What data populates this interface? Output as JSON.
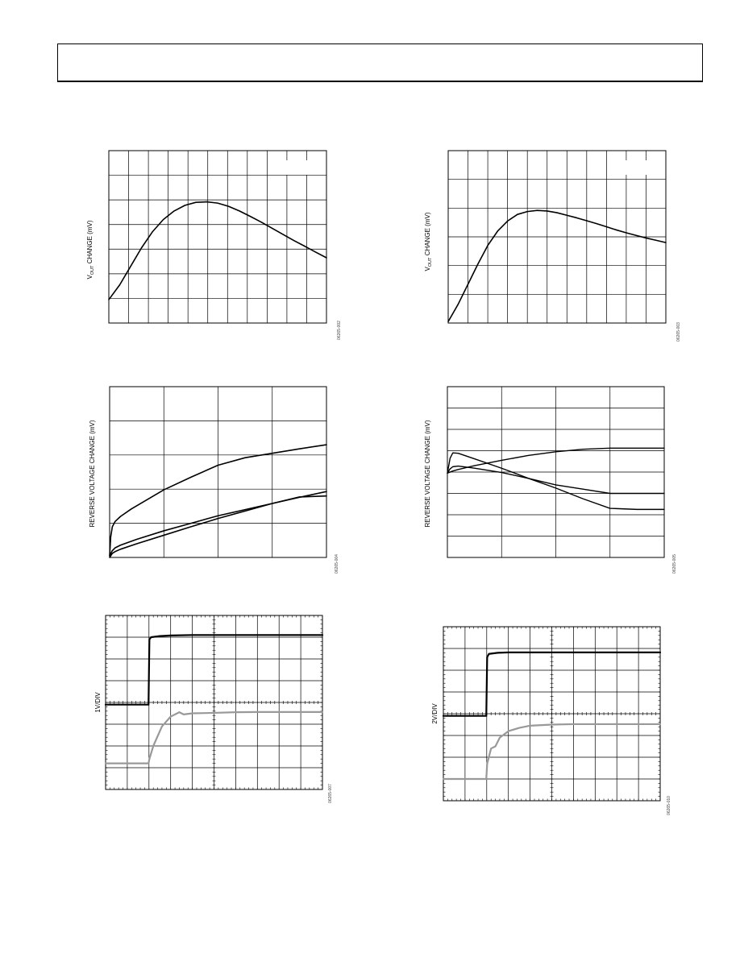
{
  "header": {
    "text": ""
  },
  "chart_data": [
    {
      "type": "line",
      "ylabel_main": "V",
      "ylabel_sub": "OUT",
      "ylabel_rest": " CHANGE (mV)",
      "grid": true,
      "xlim": [
        0,
        10
      ],
      "ylim": [
        0,
        7
      ],
      "series": [
        {
          "x": [
            0,
            0.5,
            1,
            1.5,
            2,
            2.5,
            3,
            3.5,
            4,
            4.5,
            5,
            5.5,
            6,
            6.5,
            7,
            7.5,
            8,
            8.5,
            9,
            9.5,
            10
          ],
          "y": [
            0.95,
            1.55,
            2.3,
            3.05,
            3.7,
            4.2,
            4.55,
            4.78,
            4.9,
            4.92,
            4.87,
            4.74,
            4.55,
            4.33,
            4.1,
            3.85,
            3.6,
            3.35,
            3.12,
            2.88,
            2.65
          ]
        }
      ],
      "code": "06265-002"
    },
    {
      "type": "line",
      "ylabel_main": "V",
      "ylabel_sub": "OUT",
      "ylabel_rest": " CHANGE (mV)",
      "grid": true,
      "xlim": [
        0,
        11
      ],
      "ylim": [
        0,
        6
      ],
      "series": [
        {
          "x": [
            0,
            0.5,
            1,
            1.5,
            2,
            2.5,
            3,
            3.5,
            4,
            4.5,
            5,
            5.5,
            6,
            6.5,
            7,
            7.5,
            8,
            8.5,
            9,
            9.5,
            10,
            10.5,
            11
          ],
          "y": [
            0.05,
            0.65,
            1.35,
            2.05,
            2.7,
            3.2,
            3.55,
            3.78,
            3.88,
            3.92,
            3.9,
            3.84,
            3.75,
            3.66,
            3.56,
            3.46,
            3.35,
            3.24,
            3.14,
            3.05,
            2.96,
            2.88,
            2.8
          ]
        }
      ],
      "code": "06265-003"
    },
    {
      "type": "line",
      "ylabel": "REVERSE VOLTAGE CHANGE (mV)",
      "grid": true,
      "xlim": [
        0,
        4
      ],
      "ylim": [
        0,
        5
      ],
      "series": [
        {
          "x": [
            0,
            0.02,
            0.05,
            0.1,
            0.2,
            0.4,
            0.7,
            1,
            1.5,
            2,
            2.5,
            3,
            3.5,
            4
          ],
          "y": [
            0.05,
            0.6,
            0.9,
            1.05,
            1.2,
            1.42,
            1.7,
            1.98,
            2.35,
            2.7,
            2.92,
            3.05,
            3.18,
            3.3
          ]
        },
        {
          "x": [
            0,
            0.05,
            0.1,
            0.2,
            0.5,
            1,
            1.5,
            2,
            2.5,
            3,
            3.5,
            4
          ],
          "y": [
            0.05,
            0.2,
            0.28,
            0.36,
            0.53,
            0.78,
            1.0,
            1.22,
            1.4,
            1.58,
            1.76,
            1.93
          ]
        },
        {
          "x": [
            0,
            0.05,
            0.1,
            0.2,
            0.5,
            1,
            1.5,
            2,
            2.5,
            3,
            3.5,
            4
          ],
          "y": [
            0.0,
            0.12,
            0.17,
            0.24,
            0.4,
            0.65,
            0.9,
            1.14,
            1.36,
            1.58,
            1.77,
            1.8
          ]
        }
      ],
      "code": "06265-004"
    },
    {
      "type": "line",
      "ylabel": "REVERSE VOLTAGE CHANGE (mV)",
      "grid": true,
      "xlim": [
        0,
        4
      ],
      "ylim": [
        0,
        8
      ],
      "series": [
        {
          "x": [
            0,
            0.1,
            0.2,
            0.5,
            1,
            1.5,
            2,
            2.5,
            3,
            3.5,
            4
          ],
          "y": [
            3.95,
            4.05,
            4.12,
            4.3,
            4.55,
            4.78,
            4.95,
            5.07,
            5.12,
            5.12,
            5.12
          ]
        },
        {
          "x": [
            0,
            0.05,
            0.1,
            0.2,
            0.5,
            1,
            1.5,
            2,
            2.5,
            3,
            3.5,
            4
          ],
          "y": [
            3.95,
            4.65,
            4.9,
            4.88,
            4.62,
            4.18,
            3.7,
            3.25,
            2.75,
            2.3,
            2.25,
            2.25
          ]
        },
        {
          "x": [
            0,
            0.05,
            0.1,
            0.2,
            0.5,
            1,
            1.5,
            2,
            2.5,
            3,
            3.5,
            4
          ],
          "y": [
            3.95,
            4.15,
            4.25,
            4.28,
            4.18,
            3.98,
            3.7,
            3.4,
            3.2,
            3.0,
            3.0,
            3.0
          ]
        }
      ],
      "code": "06265-005"
    },
    {
      "type": "line",
      "ylabel": "1V/DIV",
      "grid": true,
      "xlim": [
        0,
        10
      ],
      "ylim": [
        0,
        8
      ],
      "series": [
        {
          "name": "",
          "color": "#000000",
          "x": [
            0,
            1.98,
            2.02,
            2.1,
            2.5,
            3,
            4,
            5,
            6,
            7,
            8,
            9,
            10
          ],
          "y": [
            3.9,
            3.9,
            6.9,
            7.0,
            7.05,
            7.08,
            7.1,
            7.1,
            7.1,
            7.1,
            7.1,
            7.1,
            7.1
          ]
        },
        {
          "name": "",
          "color": "#999999",
          "x": [
            0,
            1.98,
            2.02,
            2.2,
            2.6,
            3,
            3.4,
            3.6,
            4,
            5,
            6,
            7,
            8,
            9,
            10
          ],
          "y": [
            1.2,
            1.2,
            1.4,
            2.0,
            2.9,
            3.35,
            3.55,
            3.45,
            3.5,
            3.52,
            3.55,
            3.56,
            3.56,
            3.56,
            3.56
          ]
        }
      ],
      "code": "06265-007"
    },
    {
      "type": "line",
      "ylabel": "2V/DIV",
      "grid": true,
      "xlim": [
        0,
        10
      ],
      "ylim": [
        0,
        8
      ],
      "series": [
        {
          "name": "",
          "color": "#000000",
          "x": [
            0,
            1.98,
            2.02,
            2.1,
            2.5,
            3,
            4,
            5,
            6,
            7,
            8,
            9,
            10
          ],
          "y": [
            3.9,
            3.9,
            6.6,
            6.75,
            6.8,
            6.82,
            6.82,
            6.82,
            6.82,
            6.82,
            6.82,
            6.82,
            6.82
          ]
        },
        {
          "name": "",
          "color": "#999999",
          "x": [
            0,
            1.98,
            2.02,
            2.2,
            2.4,
            2.6,
            3,
            3.5,
            4,
            5,
            6,
            7,
            8,
            9,
            10
          ],
          "y": [
            1.0,
            1.0,
            1.7,
            2.4,
            2.5,
            2.9,
            3.2,
            3.35,
            3.45,
            3.5,
            3.52,
            3.52,
            3.52,
            3.52,
            3.52
          ]
        }
      ],
      "code": "06265-010"
    }
  ]
}
